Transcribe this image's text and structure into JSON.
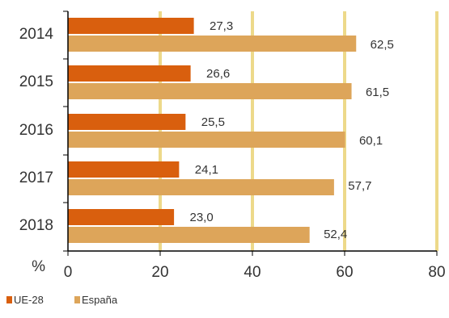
{
  "chart_data": {
    "type": "bar",
    "orientation": "horizontal",
    "categories": [
      "2014",
      "2015",
      "2016",
      "2017",
      "2018"
    ],
    "series": [
      {
        "name": "UE-28",
        "color": "#D95F0E",
        "values": [
          27.3,
          26.6,
          25.5,
          24.1,
          23.0
        ],
        "labels": [
          "27,3",
          "26,6",
          "25,5",
          "24,1",
          "23,0"
        ]
      },
      {
        "name": "España",
        "color": "#DDA55A",
        "values": [
          62.5,
          61.5,
          60.1,
          57.7,
          52.4
        ],
        "labels": [
          "62,5",
          "61,5",
          "60,1",
          "57,7",
          "52,4"
        ]
      }
    ],
    "x_axis": {
      "unit": "%",
      "range": [
        0,
        80
      ],
      "ticks": [
        "0",
        "20",
        "40",
        "60",
        "80"
      ],
      "tick_values": [
        0,
        20,
        40,
        60,
        80
      ]
    },
    "gridlines": {
      "on": true,
      "color": "#EDD98A"
    },
    "legend": {
      "placement": "bottom-left"
    }
  }
}
